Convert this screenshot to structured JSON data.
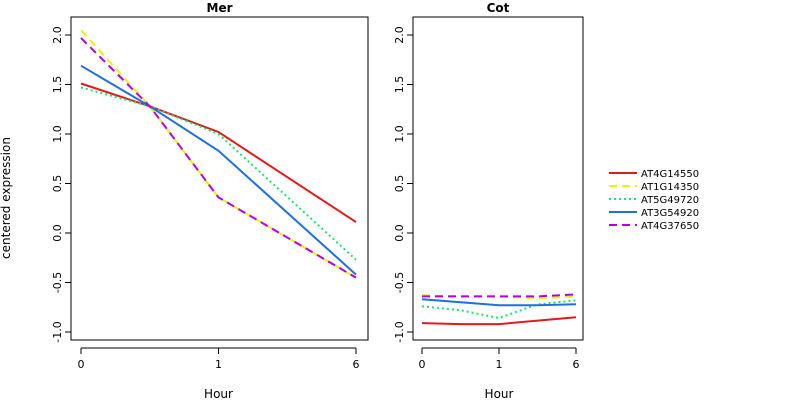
{
  "chart_data": {
    "type": "line",
    "ylabel": "centered expression",
    "ylim": [
      -1.0,
      2.1
    ],
    "x_categories": [
      "0",
      "1",
      "6"
    ],
    "x_positions": [
      0,
      1,
      2
    ],
    "yticks": [
      -1.0,
      -0.5,
      0.0,
      0.5,
      1.0,
      1.5,
      2.0
    ],
    "ytick_labels": [
      "-1.0",
      "-0.5",
      "0.0",
      "0.5",
      "1.0",
      "1.5",
      "2.0"
    ],
    "legend": {
      "placement": "right",
      "entries": [
        "AT4G14550",
        "AT1G14350",
        "AT5G49720",
        "AT3G54920",
        "AT4G37650"
      ]
    },
    "series_styles": [
      {
        "color": "#e31a1c",
        "dash": "solid"
      },
      {
        "color": "#e5f50f",
        "dash": "dashed"
      },
      {
        "color": "#1fe06a",
        "dash": "dotted"
      },
      {
        "color": "#1f6fe0",
        "dash": "solid"
      },
      {
        "color": "#b300e6",
        "dash": "dashed"
      }
    ],
    "panels": [
      {
        "title": "Mer",
        "xlabel": "Hour",
        "series": [
          {
            "values": [
              [
                0,
                1.51
              ],
              [
                0.5,
                1.28
              ],
              [
                1,
                1.02
              ],
              [
                2,
                0.11
              ]
            ]
          },
          {
            "values": [
              [
                0,
                2.05
              ],
              [
                0.5,
                1.28
              ],
              [
                1,
                0.36
              ],
              [
                2,
                -0.45
              ]
            ]
          },
          {
            "values": [
              [
                0,
                1.47
              ],
              [
                0.5,
                1.28
              ],
              [
                1,
                1.0
              ],
              [
                2,
                -0.27
              ]
            ]
          },
          {
            "values": [
              [
                0,
                1.69
              ],
              [
                0.5,
                1.28
              ],
              [
                1,
                0.83
              ],
              [
                2,
                -0.42
              ]
            ]
          },
          {
            "values": [
              [
                0,
                1.97
              ],
              [
                0.5,
                1.28
              ],
              [
                1,
                0.36
              ],
              [
                2,
                -0.45
              ]
            ]
          }
        ]
      },
      {
        "title": "Cot",
        "xlabel": "Hour",
        "series": [
          {
            "values": [
              [
                0,
                -0.91
              ],
              [
                0.5,
                -0.92
              ],
              [
                1,
                -0.92
              ],
              [
                2,
                -0.85
              ]
            ]
          },
          {
            "values": [
              [
                0,
                -0.63
              ],
              [
                0.5,
                -0.64
              ],
              [
                1,
                -0.64
              ],
              [
                1.5,
                -0.66
              ],
              [
                2,
                -0.64
              ]
            ]
          },
          {
            "values": [
              [
                0,
                -0.74
              ],
              [
                0.5,
                -0.78
              ],
              [
                1,
                -0.86
              ],
              [
                1.5,
                -0.72
              ],
              [
                2,
                -0.68
              ]
            ]
          },
          {
            "values": [
              [
                0,
                -0.67
              ],
              [
                0.5,
                -0.7
              ],
              [
                1,
                -0.73
              ],
              [
                1.5,
                -0.73
              ],
              [
                2,
                -0.72
              ]
            ]
          },
          {
            "values": [
              [
                0,
                -0.64
              ],
              [
                0.5,
                -0.64
              ],
              [
                1,
                -0.64
              ],
              [
                1.5,
                -0.64
              ],
              [
                2,
                -0.62
              ]
            ]
          }
        ]
      }
    ]
  }
}
